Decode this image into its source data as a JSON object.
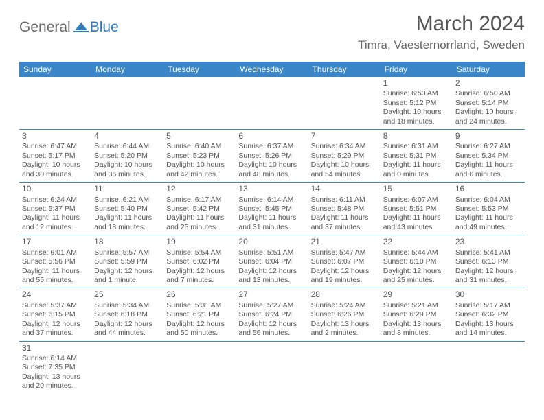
{
  "logo": {
    "general": "General",
    "blue": "Blue"
  },
  "title": "March 2024",
  "location": "Timra, Vaesternorrland, Sweden",
  "colors": {
    "header_bg": "#3a86c8",
    "header_text": "#ffffff",
    "body_text": "#555555",
    "border": "#3a86c8",
    "logo_blue": "#2d7cc0",
    "logo_gray": "#6a6a6a",
    "background": "#ffffff"
  },
  "day_headers": [
    "Sunday",
    "Monday",
    "Tuesday",
    "Wednesday",
    "Thursday",
    "Friday",
    "Saturday"
  ],
  "weeks": [
    [
      null,
      null,
      null,
      null,
      null,
      {
        "n": "1",
        "sr": "Sunrise: 6:53 AM",
        "ss": "Sunset: 5:12 PM",
        "dl": "Daylight: 10 hours and 18 minutes."
      },
      {
        "n": "2",
        "sr": "Sunrise: 6:50 AM",
        "ss": "Sunset: 5:14 PM",
        "dl": "Daylight: 10 hours and 24 minutes."
      }
    ],
    [
      {
        "n": "3",
        "sr": "Sunrise: 6:47 AM",
        "ss": "Sunset: 5:17 PM",
        "dl": "Daylight: 10 hours and 30 minutes."
      },
      {
        "n": "4",
        "sr": "Sunrise: 6:44 AM",
        "ss": "Sunset: 5:20 PM",
        "dl": "Daylight: 10 hours and 36 minutes."
      },
      {
        "n": "5",
        "sr": "Sunrise: 6:40 AM",
        "ss": "Sunset: 5:23 PM",
        "dl": "Daylight: 10 hours and 42 minutes."
      },
      {
        "n": "6",
        "sr": "Sunrise: 6:37 AM",
        "ss": "Sunset: 5:26 PM",
        "dl": "Daylight: 10 hours and 48 minutes."
      },
      {
        "n": "7",
        "sr": "Sunrise: 6:34 AM",
        "ss": "Sunset: 5:29 PM",
        "dl": "Daylight: 10 hours and 54 minutes."
      },
      {
        "n": "8",
        "sr": "Sunrise: 6:31 AM",
        "ss": "Sunset: 5:31 PM",
        "dl": "Daylight: 11 hours and 0 minutes."
      },
      {
        "n": "9",
        "sr": "Sunrise: 6:27 AM",
        "ss": "Sunset: 5:34 PM",
        "dl": "Daylight: 11 hours and 6 minutes."
      }
    ],
    [
      {
        "n": "10",
        "sr": "Sunrise: 6:24 AM",
        "ss": "Sunset: 5:37 PM",
        "dl": "Daylight: 11 hours and 12 minutes."
      },
      {
        "n": "11",
        "sr": "Sunrise: 6:21 AM",
        "ss": "Sunset: 5:40 PM",
        "dl": "Daylight: 11 hours and 18 minutes."
      },
      {
        "n": "12",
        "sr": "Sunrise: 6:17 AM",
        "ss": "Sunset: 5:42 PM",
        "dl": "Daylight: 11 hours and 25 minutes."
      },
      {
        "n": "13",
        "sr": "Sunrise: 6:14 AM",
        "ss": "Sunset: 5:45 PM",
        "dl": "Daylight: 11 hours and 31 minutes."
      },
      {
        "n": "14",
        "sr": "Sunrise: 6:11 AM",
        "ss": "Sunset: 5:48 PM",
        "dl": "Daylight: 11 hours and 37 minutes."
      },
      {
        "n": "15",
        "sr": "Sunrise: 6:07 AM",
        "ss": "Sunset: 5:51 PM",
        "dl": "Daylight: 11 hours and 43 minutes."
      },
      {
        "n": "16",
        "sr": "Sunrise: 6:04 AM",
        "ss": "Sunset: 5:53 PM",
        "dl": "Daylight: 11 hours and 49 minutes."
      }
    ],
    [
      {
        "n": "17",
        "sr": "Sunrise: 6:01 AM",
        "ss": "Sunset: 5:56 PM",
        "dl": "Daylight: 11 hours and 55 minutes."
      },
      {
        "n": "18",
        "sr": "Sunrise: 5:57 AM",
        "ss": "Sunset: 5:59 PM",
        "dl": "Daylight: 12 hours and 1 minute."
      },
      {
        "n": "19",
        "sr": "Sunrise: 5:54 AM",
        "ss": "Sunset: 6:02 PM",
        "dl": "Daylight: 12 hours and 7 minutes."
      },
      {
        "n": "20",
        "sr": "Sunrise: 5:51 AM",
        "ss": "Sunset: 6:04 PM",
        "dl": "Daylight: 12 hours and 13 minutes."
      },
      {
        "n": "21",
        "sr": "Sunrise: 5:47 AM",
        "ss": "Sunset: 6:07 PM",
        "dl": "Daylight: 12 hours and 19 minutes."
      },
      {
        "n": "22",
        "sr": "Sunrise: 5:44 AM",
        "ss": "Sunset: 6:10 PM",
        "dl": "Daylight: 12 hours and 25 minutes."
      },
      {
        "n": "23",
        "sr": "Sunrise: 5:41 AM",
        "ss": "Sunset: 6:13 PM",
        "dl": "Daylight: 12 hours and 31 minutes."
      }
    ],
    [
      {
        "n": "24",
        "sr": "Sunrise: 5:37 AM",
        "ss": "Sunset: 6:15 PM",
        "dl": "Daylight: 12 hours and 37 minutes."
      },
      {
        "n": "25",
        "sr": "Sunrise: 5:34 AM",
        "ss": "Sunset: 6:18 PM",
        "dl": "Daylight: 12 hours and 44 minutes."
      },
      {
        "n": "26",
        "sr": "Sunrise: 5:31 AM",
        "ss": "Sunset: 6:21 PM",
        "dl": "Daylight: 12 hours and 50 minutes."
      },
      {
        "n": "27",
        "sr": "Sunrise: 5:27 AM",
        "ss": "Sunset: 6:24 PM",
        "dl": "Daylight: 12 hours and 56 minutes."
      },
      {
        "n": "28",
        "sr": "Sunrise: 5:24 AM",
        "ss": "Sunset: 6:26 PM",
        "dl": "Daylight: 13 hours and 2 minutes."
      },
      {
        "n": "29",
        "sr": "Sunrise: 5:21 AM",
        "ss": "Sunset: 6:29 PM",
        "dl": "Daylight: 13 hours and 8 minutes."
      },
      {
        "n": "30",
        "sr": "Sunrise: 5:17 AM",
        "ss": "Sunset: 6:32 PM",
        "dl": "Daylight: 13 hours and 14 minutes."
      }
    ],
    [
      {
        "n": "31",
        "sr": "Sunrise: 6:14 AM",
        "ss": "Sunset: 7:35 PM",
        "dl": "Daylight: 13 hours and 20 minutes."
      },
      null,
      null,
      null,
      null,
      null,
      null
    ]
  ]
}
